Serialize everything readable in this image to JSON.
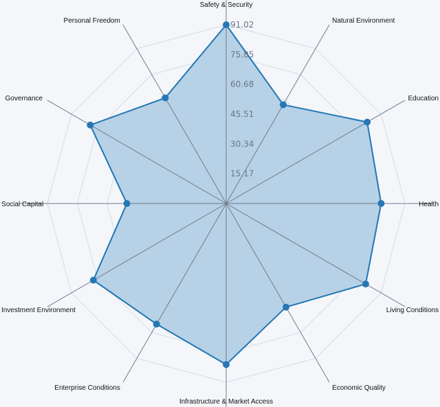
{
  "chart_data": {
    "type": "radar",
    "categories": [
      "Safety & Security",
      "Natural Environment",
      "Education",
      "Health",
      "Living Conditions",
      "Economic Quality",
      "Infrastructure & Market Access",
      "Enterprise Conditions",
      "Investment Environment",
      "Social Capital",
      "Governance",
      "Personal Freedom"
    ],
    "values": [
      91.02,
      58.1,
      82.9,
      78.9,
      82.0,
      60.9,
      82.0,
      70.9,
      78.1,
      50.6,
      79.9,
      62.1
    ],
    "rmax": 91.02,
    "ticks": [
      15.17,
      30.34,
      45.51,
      60.68,
      75.85,
      91.02
    ],
    "tick_labels": [
      "15.17",
      "30.34",
      "45.51",
      "60.68",
      "75.85",
      "91.02"
    ],
    "grid": true,
    "colors": {
      "background": "#f4f6fa",
      "fill": "#b3cfe5",
      "line": "#1f77b4",
      "marker": "#2677b5",
      "spoke": "#707c8c",
      "grid": "#d6dbe2",
      "tick_text": "#6b7686",
      "label_text": "#111111"
    }
  }
}
